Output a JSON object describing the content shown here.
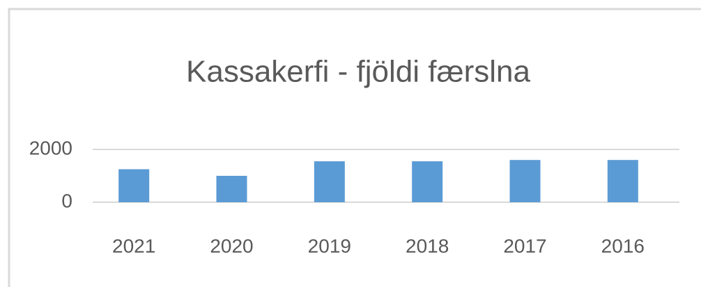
{
  "chart_data": {
    "type": "bar",
    "title": "Kassakerfi - fjöldi færslna",
    "categories": [
      "2021",
      "2020",
      "2019",
      "2018",
      "2017",
      "2016"
    ],
    "values": [
      1250,
      1000,
      1550,
      1550,
      1600,
      1600
    ],
    "color": "#5b9bd5",
    "ylim": [
      0,
      2000
    ],
    "yticks": [
      0,
      2000
    ],
    "grid": true
  }
}
